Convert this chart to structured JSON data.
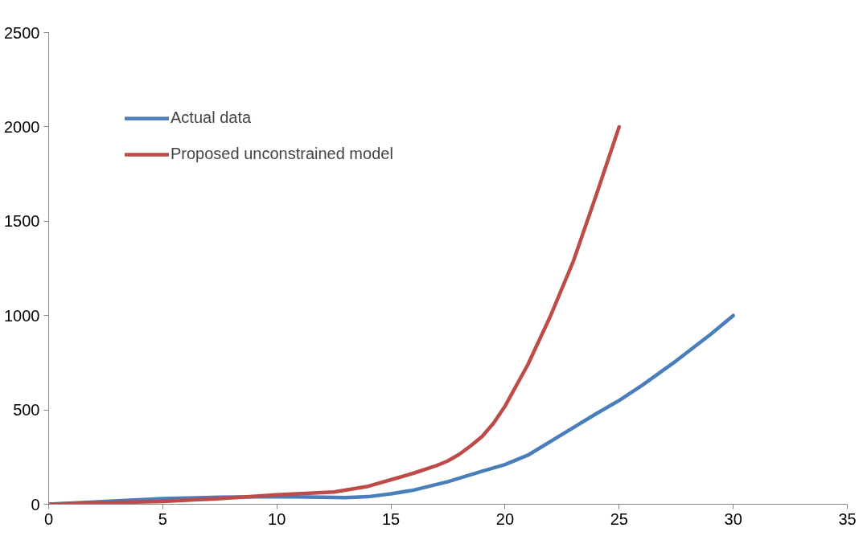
{
  "chart_data": {
    "type": "line",
    "series": [
      {
        "name": "Actual data",
        "color": "#4a7ebb",
        "x": [
          0,
          2.5,
          5,
          7.5,
          10,
          12,
          13,
          14,
          15,
          16,
          17.5,
          19,
          20,
          21,
          22.5,
          24,
          25,
          26,
          27.5,
          29,
          30
        ],
        "values": [
          0,
          15,
          30,
          37,
          40,
          37,
          35,
          40,
          55,
          75,
          120,
          175,
          210,
          260,
          370,
          480,
          550,
          630,
          760,
          900,
          1000
        ]
      },
      {
        "name": "Proposed unconstrained model",
        "color": "#be4b48",
        "x": [
          0,
          2.5,
          5,
          7.5,
          10,
          12.5,
          14,
          15,
          16,
          17,
          17.5,
          18,
          18.5,
          19,
          19.5,
          20,
          21,
          22,
          23,
          24,
          25
        ],
        "values": [
          0,
          8,
          15,
          30,
          50,
          65,
          95,
          130,
          165,
          205,
          230,
          265,
          310,
          360,
          430,
          520,
          740,
          1000,
          1290,
          1640,
          2000
        ]
      }
    ],
    "xlim": [
      0,
      35
    ],
    "xticks": [
      0,
      5,
      10,
      15,
      20,
      25,
      30,
      35
    ],
    "ylim": [
      0,
      2500
    ],
    "yticks": [
      0,
      500,
      1000,
      1500,
      2000,
      2500
    ],
    "grid": false,
    "legend": "top left",
    "line_style": "solid",
    "marker": "none"
  }
}
